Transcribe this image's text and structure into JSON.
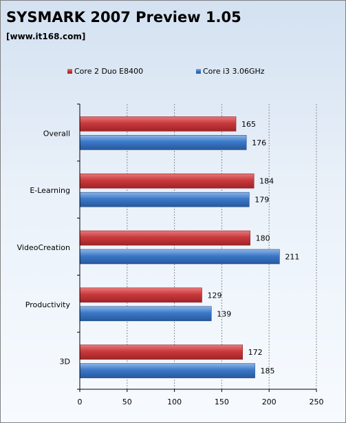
{
  "colors": {
    "series_red": "#c9393c",
    "series_blue": "#3b78c8"
  },
  "chart_data": {
    "type": "bar",
    "orientation": "horizontal",
    "title": "SYSMARK 2007 Preview 1.05",
    "subtitle": "[www.it168.com]",
    "categories": [
      "Overall",
      "E-Learning",
      "VideoCreation",
      "Productivity",
      "3D"
    ],
    "series": [
      {
        "name": "Core 2 Duo E8400",
        "color": "#c9393c",
        "values": [
          165,
          184,
          180,
          129,
          172
        ]
      },
      {
        "name": "Core i3 3.06GHz",
        "color": "#3b78c8",
        "values": [
          176,
          179,
          211,
          139,
          185
        ]
      }
    ],
    "xlim": [
      0,
      250
    ],
    "xticks": [
      0,
      50,
      100,
      150,
      200,
      250
    ],
    "xgrid": true,
    "legend": "top"
  }
}
